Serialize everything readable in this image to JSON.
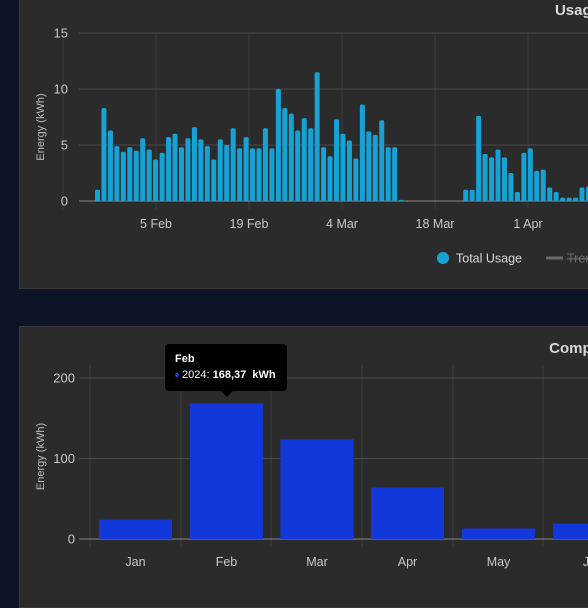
{
  "usage_card": {
    "title": "Usage"
  },
  "compare_card": {
    "title": "Compa"
  },
  "chart_data": [
    {
      "type": "bar",
      "title": "",
      "ylabel": "Energy (kWh)",
      "ylim": [
        0,
        15
      ],
      "yticks": [
        0,
        5,
        10,
        15
      ],
      "xticks": [
        "5 Feb",
        "19 Feb",
        "4 Mar",
        "18 Mar",
        "1 Apr"
      ],
      "grid": true,
      "legend": {
        "items": [
          "Total Usage",
          "Trend"
        ],
        "placement": "bottom"
      },
      "series": [
        {
          "name": "Total Usage",
          "color": "#17a2d6",
          "values": [
            1.0,
            8.3,
            6.3,
            4.9,
            4.4,
            4.8,
            4.5,
            5.6,
            4.6,
            3.7,
            4.3,
            5.7,
            6.0,
            4.8,
            5.6,
            6.6,
            5.5,
            4.9,
            3.7,
            5.5,
            5.0,
            6.5,
            4.7,
            5.7,
            4.7,
            4.7,
            6.5,
            4.7,
            10.0,
            8.3,
            7.8,
            6.3,
            7.4,
            6.5,
            11.5,
            4.8,
            4.0,
            7.3,
            6.0,
            5.4,
            3.8,
            8.6,
            6.2,
            5.9,
            7.2,
            4.8,
            4.8,
            0.1,
            0,
            0,
            0,
            0,
            0,
            0,
            0,
            0,
            0,
            1.0,
            1.0,
            7.6,
            4.2,
            3.9,
            4.6,
            3.9,
            2.5,
            0.8,
            4.3,
            4.7,
            2.7,
            2.8,
            1.2,
            0.8,
            0.3,
            0.3,
            0.3,
            1.2,
            1.3
          ]
        }
      ]
    },
    {
      "type": "bar",
      "title": "",
      "ylabel": "Energy (kWh)",
      "ylim": [
        0,
        210
      ],
      "yticks": [
        0,
        100,
        200
      ],
      "categories": [
        "Jan",
        "Feb",
        "Mar",
        "Apr",
        "May",
        "Jun"
      ],
      "category_labels": [
        "Jan",
        "Feb",
        "Mar",
        "Apr",
        "May",
        "Ju"
      ],
      "grid": true,
      "series": [
        {
          "name": "2024",
          "color": "#1238db",
          "values": [
            24,
            168.37,
            124,
            64,
            13,
            19
          ]
        }
      ],
      "tooltip": {
        "title": "Feb",
        "series_label": "2024:",
        "value": "168,37",
        "unit": "kWh"
      }
    }
  ]
}
